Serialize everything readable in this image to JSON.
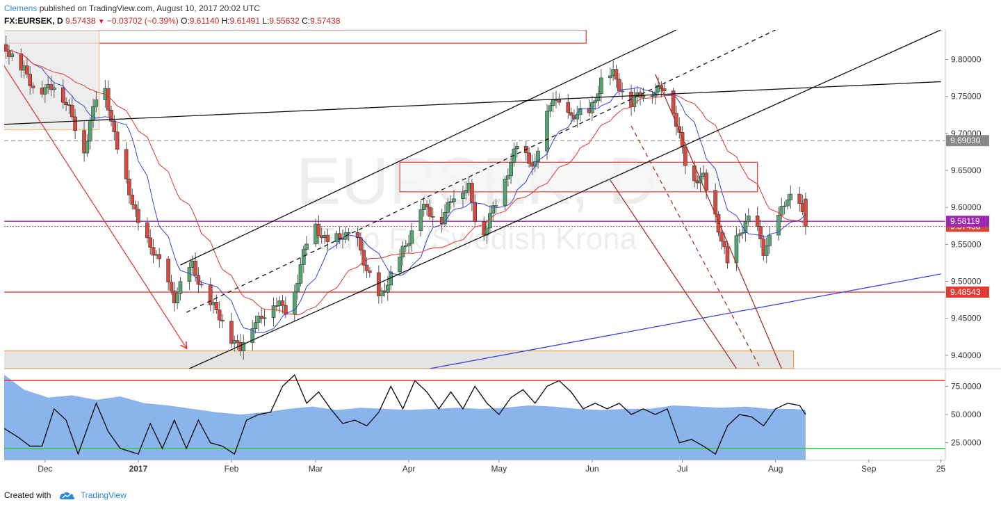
{
  "header": {
    "author": "Clemens",
    "published_text": "published on TradingView.com, August 10, 2017 20:02 UTC"
  },
  "symbol_line": {
    "symbol": "FX:EURSEK, D",
    "last": "9.57438",
    "change": "−0.03702 (−0.39%)",
    "open_label": "O:",
    "open": "9.61140",
    "high_label": "H:",
    "high": "9.61491",
    "low_label": "L:",
    "low": "9.55632",
    "close_label": "C:",
    "close": "9.57438"
  },
  "watermark": {
    "symbol": "EURSEK, D",
    "description": "Euro Fx/Swedish Krona"
  },
  "footer": {
    "created_with": "Created with",
    "brand": "TradingView"
  },
  "colors": {
    "up": "#53a66f",
    "down": "#d84a3f",
    "ma_fast": "#3547d6",
    "ma_slow": "#e5302d",
    "rsi_line": "#111111",
    "rsi_area": "#8cb4ec",
    "level_red": "#e53935",
    "level_purple": "#9c27b0",
    "level_grey": "#888888",
    "rsi_upper": "#e53935",
    "rsi_lower": "#2ecc40"
  },
  "chart_data": {
    "type": "candlestick",
    "price_axis": {
      "ylim": [
        9.382,
        9.84
      ],
      "ticks": [
        "9.80000",
        "9.75000",
        "9.70000",
        "9.65000",
        "9.60000",
        "9.55000",
        "9.50000",
        "9.45000",
        "9.40000"
      ]
    },
    "price_badges": [
      {
        "value": 9.6903,
        "label": "9.69030",
        "color": "#888888"
      },
      {
        "value": 9.58119,
        "label": "9.58119",
        "color": "#9c27b0"
      },
      {
        "value": 9.57438,
        "label": "9.57438",
        "color": "#d84a3f"
      },
      {
        "value": 9.48543,
        "label": "9.48543",
        "color": "#e53935"
      }
    ],
    "x_axis": {
      "labels": [
        "Dec",
        "2017",
        "Feb",
        "Mar",
        "Apr",
        "May",
        "Jun",
        "Jul",
        "Aug",
        "Sep",
        "25"
      ],
      "label_days": [
        15,
        46,
        77,
        105,
        136,
        166,
        197,
        227,
        258,
        289,
        313
      ],
      "last_bar_day": 268
    },
    "candle_checkpoints": [
      [
        0,
        9.815
      ],
      [
        8,
        9.79
      ],
      [
        12,
        9.75
      ],
      [
        18,
        9.77
      ],
      [
        24,
        9.72
      ],
      [
        28,
        9.68
      ],
      [
        34,
        9.78
      ],
      [
        38,
        9.7
      ],
      [
        42,
        9.63
      ],
      [
        46,
        9.58
      ],
      [
        52,
        9.53
      ],
      [
        58,
        9.48
      ],
      [
        64,
        9.52
      ],
      [
        70,
        9.47
      ],
      [
        76,
        9.43
      ],
      [
        80,
        9.41
      ],
      [
        84,
        9.44
      ],
      [
        90,
        9.47
      ],
      [
        96,
        9.46
      ],
      [
        100,
        9.52
      ],
      [
        104,
        9.58
      ],
      [
        110,
        9.55
      ],
      [
        114,
        9.56
      ],
      [
        118,
        9.57
      ],
      [
        122,
        9.51
      ],
      [
        126,
        9.48
      ],
      [
        132,
        9.52
      ],
      [
        136,
        9.56
      ],
      [
        140,
        9.6
      ],
      [
        146,
        9.58
      ],
      [
        150,
        9.61
      ],
      [
        156,
        9.63
      ],
      [
        160,
        9.55
      ],
      [
        166,
        9.62
      ],
      [
        172,
        9.68
      ],
      [
        178,
        9.66
      ],
      [
        184,
        9.75
      ],
      [
        190,
        9.72
      ],
      [
        196,
        9.73
      ],
      [
        200,
        9.77
      ],
      [
        204,
        9.78
      ],
      [
        210,
        9.74
      ],
      [
        216,
        9.76
      ],
      [
        222,
        9.76
      ],
      [
        226,
        9.7
      ],
      [
        230,
        9.63
      ],
      [
        234,
        9.64
      ],
      [
        238,
        9.59
      ],
      [
        242,
        9.52
      ],
      [
        246,
        9.57
      ],
      [
        250,
        9.59
      ],
      [
        254,
        9.54
      ],
      [
        258,
        9.58
      ],
      [
        262,
        9.61
      ],
      [
        266,
        9.61
      ],
      [
        268,
        9.574
      ]
    ],
    "trendlines": [
      {
        "p1": [
          0,
          9.712
        ],
        "p2": [
          313,
          9.77
        ],
        "color": "#111111",
        "style": "solid"
      },
      {
        "p1": [
          60,
          9.522
        ],
        "p2": [
          225,
          9.84
        ],
        "color": "#111111",
        "style": "solid"
      },
      {
        "p1": [
          63,
          9.382
        ],
        "p2": [
          313,
          9.84
        ],
        "color": "#111111",
        "style": "solid"
      },
      {
        "p1": [
          62,
          9.458
        ],
        "p2": [
          258,
          9.84
        ],
        "color": "#111111",
        "style": "dashed"
      },
      {
        "p1": [
          143,
          9.382
        ],
        "p2": [
          313,
          9.51
        ],
        "color": "#3547d6",
        "style": "solid"
      },
      {
        "p1": [
          0,
          9.8
        ],
        "p2": [
          62,
          9.41
        ],
        "color": "#e53935",
        "style": "arrow"
      },
      {
        "p1": [
          218,
          9.78
        ],
        "p2": [
          260,
          9.382
        ],
        "color": "#a93226",
        "style": "solid"
      },
      {
        "p1": [
          203,
          9.637
        ],
        "p2": [
          245,
          9.382
        ],
        "color": "#a93226",
        "style": "solid"
      },
      {
        "p1": [
          210,
          9.71
        ],
        "p2": [
          253,
          9.382
        ],
        "color": "#a93226",
        "style": "dashed"
      }
    ],
    "zones": [
      {
        "x": [
          0,
          195
        ],
        "y": [
          9.822,
          9.84
        ],
        "stroke": "#e53935",
        "fill": "none"
      },
      {
        "x": [
          0,
          33
        ],
        "y": [
          9.705,
          9.84
        ],
        "stroke": "#f0c080",
        "fill": "#e8e8e8"
      },
      {
        "x": [
          133,
          252
        ],
        "y": [
          9.621,
          9.661
        ],
        "stroke": "#e53935",
        "fill": "#f5f5f5"
      },
      {
        "x": [
          0,
          264
        ],
        "y": [
          9.382,
          9.406
        ],
        "stroke": "#f0a040",
        "fill": "#dddddd"
      }
    ],
    "levels": [
      {
        "value": 9.6903,
        "color": "#888888",
        "style": "dashed"
      },
      {
        "value": 9.58119,
        "color": "#9c27b0",
        "style": "solid"
      },
      {
        "value": 9.57438,
        "color": "#d84a3f",
        "style": "dotted"
      },
      {
        "value": 9.48543,
        "color": "#e53935",
        "style": "solid"
      }
    ],
    "rsi": {
      "ylim": [
        10,
        90
      ],
      "ticks": [
        "75.0000",
        "50.0000",
        "25.0000"
      ],
      "upper": 80,
      "lower": 20,
      "checkpoints": [
        [
          0,
          40
        ],
        [
          6,
          30
        ],
        [
          10,
          22
        ],
        [
          14,
          22
        ],
        [
          18,
          55
        ],
        [
          22,
          45
        ],
        [
          26,
          15
        ],
        [
          32,
          60
        ],
        [
          36,
          35
        ],
        [
          40,
          20
        ],
        [
          46,
          15
        ],
        [
          50,
          42
        ],
        [
          54,
          20
        ],
        [
          58,
          45
        ],
        [
          62,
          20
        ],
        [
          66,
          45
        ],
        [
          70,
          25
        ],
        [
          74,
          22
        ],
        [
          78,
          15
        ],
        [
          82,
          45
        ],
        [
          86,
          50
        ],
        [
          90,
          52
        ],
        [
          94,
          75
        ],
        [
          98,
          85
        ],
        [
          102,
          60
        ],
        [
          106,
          70
        ],
        [
          110,
          55
        ],
        [
          114,
          42
        ],
        [
          118,
          45
        ],
        [
          122,
          40
        ],
        [
          126,
          52
        ],
        [
          130,
          75
        ],
        [
          134,
          55
        ],
        [
          138,
          80
        ],
        [
          142,
          70
        ],
        [
          146,
          55
        ],
        [
          150,
          70
        ],
        [
          154,
          55
        ],
        [
          158,
          75
        ],
        [
          162,
          60
        ],
        [
          166,
          50
        ],
        [
          170,
          65
        ],
        [
          174,
          72
        ],
        [
          178,
          60
        ],
        [
          182,
          75
        ],
        [
          186,
          80
        ],
        [
          190,
          70
        ],
        [
          194,
          55
        ],
        [
          198,
          60
        ],
        [
          202,
          55
        ],
        [
          206,
          60
        ],
        [
          210,
          50
        ],
        [
          214,
          55
        ],
        [
          218,
          50
        ],
        [
          222,
          55
        ],
        [
          226,
          25
        ],
        [
          230,
          28
        ],
        [
          234,
          22
        ],
        [
          238,
          15
        ],
        [
          242,
          40
        ],
        [
          246,
          50
        ],
        [
          250,
          48
        ],
        [
          254,
          40
        ],
        [
          258,
          55
        ],
        [
          262,
          60
        ],
        [
          266,
          58
        ],
        [
          268,
          50
        ]
      ],
      "area_checkpoints": [
        [
          0,
          88
        ],
        [
          8,
          72
        ],
        [
          16,
          65
        ],
        [
          24,
          67
        ],
        [
          32,
          63
        ],
        [
          40,
          66
        ],
        [
          48,
          60
        ],
        [
          56,
          58
        ],
        [
          64,
          55
        ],
        [
          72,
          52
        ],
        [
          80,
          50
        ],
        [
          88,
          52
        ],
        [
          96,
          55
        ],
        [
          104,
          57
        ],
        [
          112,
          54
        ],
        [
          120,
          56
        ],
        [
          128,
          55
        ],
        [
          136,
          54
        ],
        [
          144,
          55
        ],
        [
          152,
          56
        ],
        [
          160,
          55
        ],
        [
          168,
          56
        ],
        [
          176,
          58
        ],
        [
          184,
          57
        ],
        [
          192,
          55
        ],
        [
          200,
          54
        ],
        [
          208,
          55
        ],
        [
          216,
          55
        ],
        [
          224,
          58
        ],
        [
          232,
          57
        ],
        [
          240,
          56
        ],
        [
          248,
          57
        ],
        [
          256,
          55
        ],
        [
          264,
          55
        ],
        [
          268,
          54
        ]
      ]
    }
  }
}
